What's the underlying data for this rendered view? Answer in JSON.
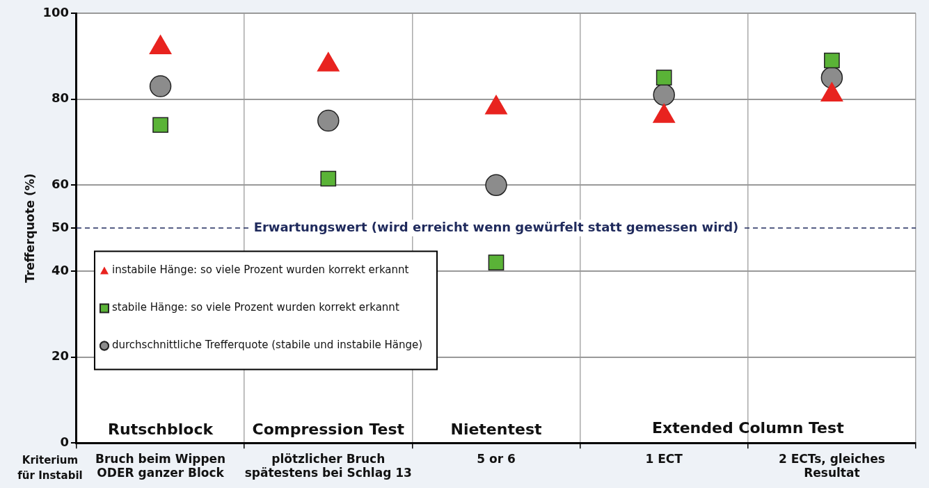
{
  "chart_data": {
    "type": "scatter",
    "ylabel": "Trefferquote (%)",
    "categories": [
      "Bruch beim Wippen\nODER ganzer Block",
      "plötzlicher Bruch\nspätestens bei Schlag 13",
      "5 or 6",
      "1 ECT",
      "2 ECTs, gleiches\nResultat"
    ],
    "series": [
      {
        "name": "instabile Hänge: so viele Prozent wurden korrekt erkannt",
        "color": "#e8231f",
        "marker": "triangle",
        "values": [
          92,
          88,
          78,
          76,
          81
        ]
      },
      {
        "name": "stabile Hänge: so viele Prozent wurden korrekt erkannt",
        "color": "#5ab337",
        "marker": "square",
        "values": [
          74,
          61.5,
          42,
          85,
          89
        ]
      },
      {
        "name": "durchschnittliche Trefferquote (stabile und instabile Hänge)",
        "color": "#8c8c8c",
        "marker": "circle",
        "values": [
          83,
          75,
          60,
          81,
          85
        ]
      }
    ],
    "ylim": [
      0,
      100
    ],
    "yticks": [
      0,
      20,
      40,
      50,
      60,
      80,
      100
    ],
    "ref_lines": [
      {
        "axis": "y",
        "value": 50,
        "label": "Erwartungswert (wird erreicht wenn gewürfelt statt gemessen wird)",
        "color": "#1f2a5c",
        "line_style": "dashed"
      }
    ],
    "annotations": [
      "Rutschblock",
      "Compression Test",
      "Nietentest",
      "Extended Column Test",
      "Kriterium\nfür Instabil"
    ],
    "grid": true,
    "legend": "bottom left"
  }
}
